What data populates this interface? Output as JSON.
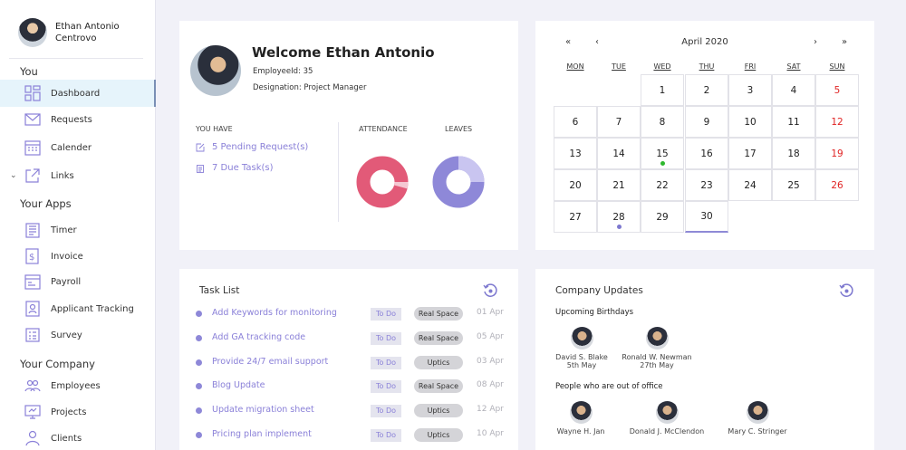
{
  "profile": {
    "name": "Ethan Antonio",
    "company": "Centrovo"
  },
  "sidebar": {
    "sections": [
      {
        "title": "You"
      },
      {
        "title": "Your Apps"
      },
      {
        "title": "Your Company"
      }
    ],
    "items": [
      {
        "label": "Dashboard",
        "icon": "dashboard-icon"
      },
      {
        "label": "Requests",
        "icon": "mail-icon"
      },
      {
        "label": "Calender",
        "icon": "calendar-icon"
      },
      {
        "label": "Links",
        "icon": "external-link-icon"
      },
      {
        "label": "Timer",
        "icon": "timer-icon"
      },
      {
        "label": "Invoice",
        "icon": "invoice-icon"
      },
      {
        "label": "Payroll",
        "icon": "payroll-icon"
      },
      {
        "label": "Applicant Tracking",
        "icon": "applicant-icon"
      },
      {
        "label": "Survey",
        "icon": "survey-icon"
      },
      {
        "label": "Employees",
        "icon": "employees-icon"
      },
      {
        "label": "Projects",
        "icon": "projects-icon"
      },
      {
        "label": "Clients",
        "icon": "clients-icon"
      }
    ]
  },
  "welcome": {
    "title": "Welcome Ethan Antonio",
    "employee_id": "EmployeeId: 35",
    "designation": "Designation: Project Manager",
    "you_have": "YOU HAVE",
    "pending": "5 Pending Request(s)",
    "due": "7 Due Task(s)",
    "attendance_label": "ATTENDANCE",
    "leaves_label": "LEAVES"
  },
  "calendar": {
    "prev_year": "«",
    "prev_month": "‹",
    "month": "April 2020",
    "next_month": "›",
    "next_year": "»",
    "weekdays": [
      "MON",
      "TUE",
      "WED",
      "THU",
      "FRI",
      "SAT",
      "SUN"
    ],
    "days": [
      "1",
      "2",
      "3",
      "4",
      "5",
      "6",
      "7",
      "8",
      "9",
      "10",
      "11",
      "12",
      "13",
      "14",
      "15",
      "16",
      "17",
      "18",
      "19",
      "20",
      "21",
      "22",
      "23",
      "24",
      "25",
      "26",
      "27",
      "28",
      "29",
      "30"
    ]
  },
  "tasks": {
    "title": "Task List",
    "items": [
      {
        "name": "Add Keywords for monitoring",
        "status": "To Do",
        "tag": "Real Space",
        "date": "01 Apr"
      },
      {
        "name": "Add GA tracking code",
        "status": "To Do",
        "tag": "Real Space",
        "date": "05 Apr"
      },
      {
        "name": "Provide 24/7 email support",
        "status": "To Do",
        "tag": "Uptics",
        "date": "03 Apr"
      },
      {
        "name": "Blog Update",
        "status": "To Do",
        "tag": "Real Space",
        "date": "08 Apr"
      },
      {
        "name": "Update migration sheet",
        "status": "To Do",
        "tag": "Uptics",
        "date": "12 Apr"
      },
      {
        "name": "Pricing plan implement",
        "status": "To Do",
        "tag": "Uptics",
        "date": "10 Apr"
      }
    ]
  },
  "updates": {
    "title": "Company Updates",
    "birthdays_title": "Upcoming Birthdays",
    "birthdays": [
      {
        "name": "David S. Blake",
        "date": "5th May"
      },
      {
        "name": "Ronald W. Newman",
        "date": "27th May"
      }
    ],
    "out_title": "People who are out of office",
    "out": [
      {
        "name": "Wayne H. Jan"
      },
      {
        "name": "Donald J. McClendon"
      },
      {
        "name": "Mary C. Stringer"
      }
    ]
  },
  "colors": {
    "attendance": "#e25a78",
    "leaves": "#8e88d8",
    "weekend": "#e02424",
    "accent": "#8a80d8"
  }
}
